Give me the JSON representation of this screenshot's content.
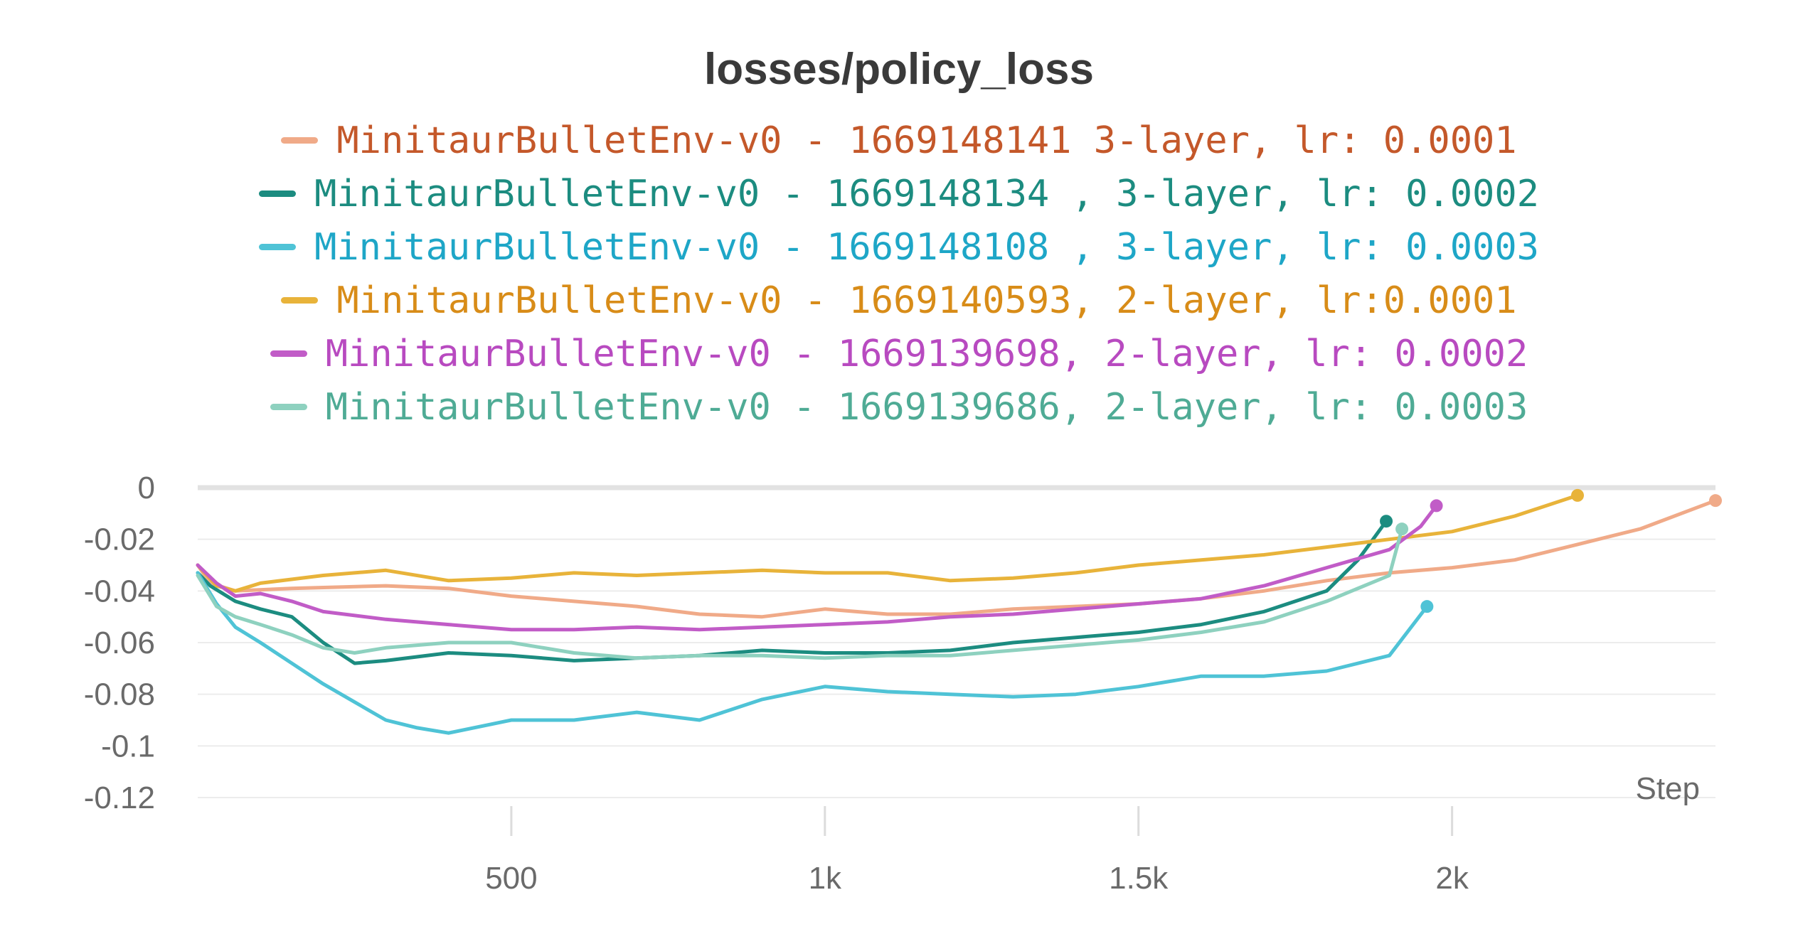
{
  "chart_data": {
    "type": "line",
    "title": "losses/policy_loss",
    "xlabel": "Step",
    "ylabel": "",
    "xlim": [
      0,
      2420
    ],
    "ylim": [
      -0.12,
      0
    ],
    "x_ticks": [
      500,
      1000,
      1500,
      2000
    ],
    "x_tick_labels": [
      "500",
      "1k",
      "1.5k",
      "2k"
    ],
    "y_ticks": [
      0,
      -0.02,
      -0.04,
      -0.06,
      -0.08,
      -0.1,
      -0.12
    ],
    "y_tick_labels": [
      "0",
      "-0.02",
      "-0.04",
      "-0.06",
      "-0.08",
      "-0.1",
      "-0.12"
    ],
    "grid": true,
    "legend_position": "top-center",
    "series": [
      {
        "name": "MinitaurBulletEnv-v0 - 1669148141 3-layer, lr: 0.0001",
        "color": "#f0aa88",
        "text_color": "#c4582a",
        "x": [
          0,
          20,
          60,
          150,
          300,
          400,
          500,
          600,
          700,
          800,
          900,
          1000,
          1100,
          1200,
          1300,
          1400,
          1500,
          1600,
          1700,
          1800,
          1900,
          2000,
          2100,
          2200,
          2300,
          2420
        ],
        "y": [
          -0.03,
          -0.037,
          -0.04,
          -0.039,
          -0.038,
          -0.039,
          -0.042,
          -0.044,
          -0.046,
          -0.049,
          -0.05,
          -0.047,
          -0.049,
          -0.049,
          -0.047,
          -0.046,
          -0.045,
          -0.043,
          -0.04,
          -0.036,
          -0.033,
          -0.031,
          -0.028,
          -0.022,
          -0.016,
          -0.005
        ]
      },
      {
        "name": "MinitaurBulletEnv-v0 - 1669148134 , 3-layer, lr: 0.0002",
        "color": "#1c8c80",
        "text_color": "#1c8c80",
        "x": [
          0,
          20,
          60,
          100,
          150,
          200,
          250,
          300,
          400,
          500,
          600,
          700,
          800,
          900,
          1000,
          1100,
          1200,
          1300,
          1400,
          1500,
          1600,
          1700,
          1800,
          1850,
          1895
        ],
        "y": [
          -0.033,
          -0.038,
          -0.044,
          -0.047,
          -0.05,
          -0.06,
          -0.068,
          -0.067,
          -0.064,
          -0.065,
          -0.067,
          -0.066,
          -0.065,
          -0.063,
          -0.064,
          -0.064,
          -0.063,
          -0.06,
          -0.058,
          -0.056,
          -0.053,
          -0.048,
          -0.04,
          -0.028,
          -0.013
        ]
      },
      {
        "name": "MinitaurBulletEnv-v0 - 1669148108 , 3-layer, lr: 0.0003",
        "color": "#4fc3d6",
        "text_color": "#1ea6c7",
        "x": [
          0,
          30,
          60,
          100,
          150,
          200,
          250,
          300,
          350,
          400,
          500,
          600,
          700,
          800,
          900,
          1000,
          1100,
          1200,
          1300,
          1400,
          1500,
          1600,
          1700,
          1800,
          1900,
          1960
        ],
        "y": [
          -0.033,
          -0.045,
          -0.054,
          -0.06,
          -0.068,
          -0.076,
          -0.083,
          -0.09,
          -0.093,
          -0.095,
          -0.09,
          -0.09,
          -0.087,
          -0.09,
          -0.082,
          -0.077,
          -0.079,
          -0.08,
          -0.081,
          -0.08,
          -0.077,
          -0.073,
          -0.073,
          -0.071,
          -0.065,
          -0.046
        ]
      },
      {
        "name": "MinitaurBulletEnv-v0 - 1669140593, 2-layer, lr:0.0001",
        "color": "#e8b33a",
        "text_color": "#d88c18",
        "x": [
          0,
          30,
          60,
          100,
          200,
          300,
          400,
          500,
          600,
          700,
          800,
          900,
          1000,
          1100,
          1200,
          1300,
          1400,
          1500,
          1600,
          1700,
          1800,
          1900,
          2000,
          2100,
          2200
        ],
        "y": [
          -0.03,
          -0.038,
          -0.04,
          -0.037,
          -0.034,
          -0.032,
          -0.036,
          -0.035,
          -0.033,
          -0.034,
          -0.033,
          -0.032,
          -0.033,
          -0.033,
          -0.036,
          -0.035,
          -0.033,
          -0.03,
          -0.028,
          -0.026,
          -0.023,
          -0.02,
          -0.017,
          -0.011,
          -0.003
        ]
      },
      {
        "name": "MinitaurBulletEnv-v0 - 1669139698, 2-layer, lr: 0.0002",
        "color": "#c15cc7",
        "text_color": "#b84ac0",
        "x": [
          0,
          30,
          60,
          100,
          150,
          200,
          300,
          400,
          500,
          600,
          700,
          800,
          900,
          1000,
          1100,
          1200,
          1300,
          1400,
          1500,
          1600,
          1700,
          1800,
          1900,
          1950,
          1975
        ],
        "y": [
          -0.03,
          -0.037,
          -0.042,
          -0.041,
          -0.044,
          -0.048,
          -0.051,
          -0.053,
          -0.055,
          -0.055,
          -0.054,
          -0.055,
          -0.054,
          -0.053,
          -0.052,
          -0.05,
          -0.049,
          -0.047,
          -0.045,
          -0.043,
          -0.038,
          -0.031,
          -0.024,
          -0.015,
          -0.007
        ]
      },
      {
        "name": "MinitaurBulletEnv-v0 - 1669139686, 2-layer, lr: 0.0003",
        "color": "#8ed1bf",
        "text_color": "#4fab95",
        "x": [
          0,
          30,
          60,
          100,
          150,
          200,
          250,
          300,
          400,
          500,
          600,
          700,
          800,
          900,
          1000,
          1100,
          1200,
          1300,
          1400,
          1500,
          1600,
          1700,
          1800,
          1900,
          1920
        ],
        "y": [
          -0.034,
          -0.046,
          -0.05,
          -0.053,
          -0.057,
          -0.062,
          -0.064,
          -0.062,
          -0.06,
          -0.06,
          -0.064,
          -0.066,
          -0.065,
          -0.065,
          -0.066,
          -0.065,
          -0.065,
          -0.063,
          -0.061,
          -0.059,
          -0.056,
          -0.052,
          -0.044,
          -0.034,
          -0.016
        ]
      }
    ]
  }
}
